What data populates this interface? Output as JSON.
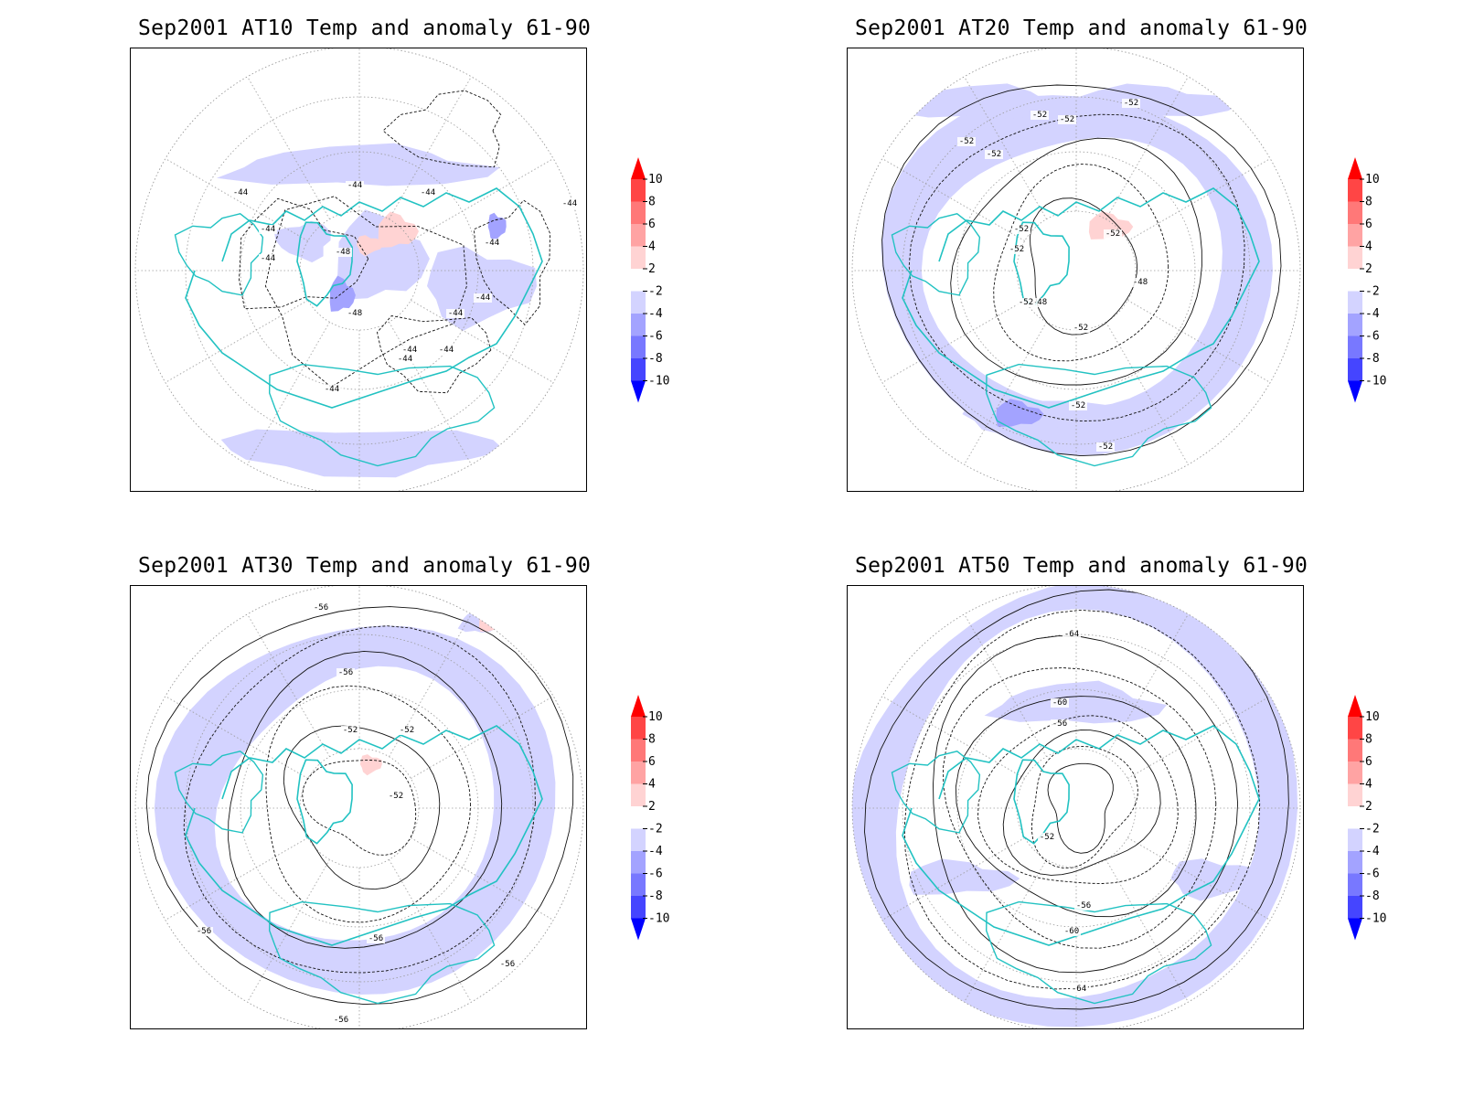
{
  "colors": {
    "coastline": "#22c2c2",
    "grid": "#9a9a9a",
    "contour": "#111111",
    "anomaly_neg_2_4": "#d3d3ff",
    "anomaly_neg_4_6": "#a3a3ff",
    "anomaly_pos_2_4": "#ffd3d3",
    "anomaly_pos_4_6": "#ffa3a3"
  },
  "legend": {
    "levels": [
      "10",
      "8",
      "6",
      "4",
      "2",
      "-2",
      "-4",
      "-6",
      "-8",
      "-10"
    ],
    "bands": [
      "#ff0000",
      "#ff4545",
      "#ff7878",
      "#ffa3a3",
      "#ffd3d3",
      "#ffffff",
      "#d3d3ff",
      "#a3a3ff",
      "#7878ff",
      "#4545ff",
      "#0000ff"
    ]
  },
  "panels": [
    {
      "title": "Sep2001 AT10 Temp and anomaly 61-90",
      "contour_labels": [
        "-44",
        "-44",
        "-44",
        "-44",
        "-44",
        "-48",
        "-48",
        "-44",
        "-44",
        "-44",
        "-44",
        "-44",
        "-44",
        "-44",
        "-44"
      ]
    },
    {
      "title": "Sep2001 AT20 Temp and anomaly 61-90",
      "contour_labels": [
        "-52",
        "-52",
        "-52",
        "-52",
        "-52",
        "-52",
        "-52",
        "-52",
        "-48",
        "-52",
        "-48",
        "-52",
        "-52",
        "-52"
      ]
    },
    {
      "title": "Sep2001 AT30 Temp and anomaly 61-90",
      "contour_labels": [
        "-56",
        "-56",
        "-52",
        "-52",
        "-52",
        "-56",
        "-56",
        "-56",
        "-56"
      ]
    },
    {
      "title": "Sep2001 AT50 Temp and anomaly 61-90",
      "contour_labels": [
        "-64",
        "-60",
        "-56",
        "-52",
        "-56",
        "-60",
        "-64"
      ]
    }
  ]
}
